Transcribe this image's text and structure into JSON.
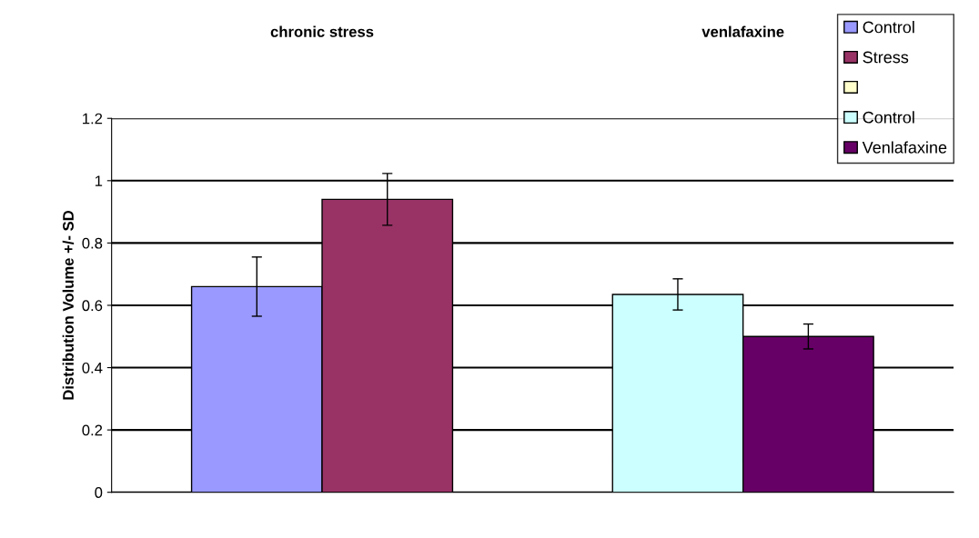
{
  "chart_data": {
    "type": "bar",
    "ylabel": "Distribution Volume +/- SD",
    "categories": [
      "chronic stress",
      "venlafaxine"
    ],
    "series": [
      {
        "name": "Control",
        "color": "#9999ff",
        "values": [
          0.66,
          null
        ],
        "errors": [
          0.095,
          null
        ]
      },
      {
        "name": "Stress",
        "color": "#993366",
        "values": [
          0.94,
          null
        ],
        "errors": [
          0.083,
          null
        ]
      },
      {
        "color": "#ffffcc",
        "values": [
          null,
          null
        ]
      },
      {
        "name": "Control",
        "color": "#ccffff",
        "values": [
          null,
          0.635
        ],
        "errors": [
          null,
          0.05
        ]
      },
      {
        "name": "Venlafaxine",
        "color": "#660066",
        "values": [
          null,
          0.5
        ],
        "errors": [
          null,
          0.04
        ]
      }
    ],
    "ylim": [
      0,
      1.2
    ],
    "yticks": [
      0,
      {
        "value": 0.2,
        "label": "0.2"
      },
      {
        "value": 0.4,
        "label": "0.4"
      },
      {
        "value": 0.6,
        "label": "0.6"
      },
      {
        "value": 0.8,
        "label": "0.8"
      },
      1,
      {
        "value": 1.2,
        "label": "1.2"
      }
    ],
    "grid": "y",
    "legend": "top right"
  }
}
